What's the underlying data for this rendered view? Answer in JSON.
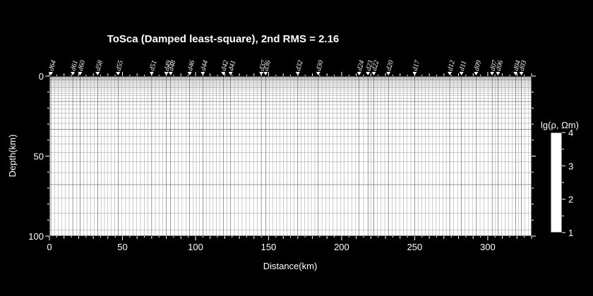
{
  "chart_data": {
    "type": "heatmap",
    "title": "ToSca (Damped least-square), 2nd RMS = 2.16",
    "xlabel": "Distance(km)",
    "ylabel": "Depth(km)",
    "xlim": [
      0,
      330
    ],
    "ylim": [
      0,
      100
    ],
    "x_ticks": [
      "0",
      "50",
      "100",
      "150",
      "200",
      "250",
      "300"
    ],
    "y_ticks": [
      "0",
      "50",
      "100"
    ],
    "colorbar": {
      "label": "lg(ρ, Ωm)",
      "range": [
        1,
        4
      ],
      "ticks": [
        "1",
        "2",
        "3",
        "4"
      ],
      "color": "#ffffff"
    },
    "stations": [
      {
        "name": "d64",
        "x": 1
      },
      {
        "name": "d61",
        "x": 16
      },
      {
        "name": "d60",
        "x": 21
      },
      {
        "name": "d58",
        "x": 33
      },
      {
        "name": "d55",
        "x": 47
      },
      {
        "name": "d51",
        "x": 70
      },
      {
        "name": "d49",
        "x": 80
      },
      {
        "name": "d48",
        "x": 83
      },
      {
        "name": "d46",
        "x": 96
      },
      {
        "name": "d44",
        "x": 105
      },
      {
        "name": "d42",
        "x": 119
      },
      {
        "name": "d41",
        "x": 124
      },
      {
        "name": "d37",
        "x": 145
      },
      {
        "name": "d36",
        "x": 148
      },
      {
        "name": "d32",
        "x": 170
      },
      {
        "name": "d30",
        "x": 184
      },
      {
        "name": "d24",
        "x": 212
      },
      {
        "name": "d23",
        "x": 218
      },
      {
        "name": "d22",
        "x": 222
      },
      {
        "name": "d20",
        "x": 232
      },
      {
        "name": "d17",
        "x": 250
      },
      {
        "name": "d12",
        "x": 274
      },
      {
        "name": "d11",
        "x": 282
      },
      {
        "name": "d09",
        "x": 292
      },
      {
        "name": "d07",
        "x": 303
      },
      {
        "name": "d06",
        "x": 307
      },
      {
        "name": "d04",
        "x": 319
      },
      {
        "name": "d03",
        "x": 323
      }
    ]
  }
}
